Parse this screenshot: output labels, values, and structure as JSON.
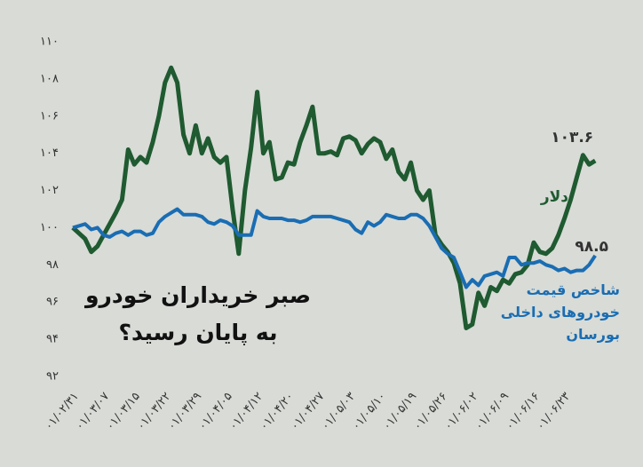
{
  "chart_data": {
    "type": "line",
    "title": "صبر خریداران خودرو به پایان رسید؟",
    "categories": [
      "۰۱/۰۲/۳۱",
      null,
      null,
      null,
      null,
      "۰۱/۰۳/۰۷",
      null,
      null,
      null,
      null,
      "۰۱/۰۳/۱۵",
      null,
      null,
      null,
      null,
      "۰۱/۰۳/۲۲",
      null,
      null,
      null,
      null,
      "۰۱/۰۳/۲۹",
      null,
      null,
      null,
      null,
      "۰۱/۰۴/۰۵",
      null,
      null,
      null,
      null,
      "۰۱/۰۴/۱۲",
      null,
      null,
      null,
      null,
      "۰۱/۰۴/۲۰",
      null,
      null,
      null,
      null,
      "۰۱/۰۴/۲۷",
      null,
      null,
      null,
      null,
      "۰۱/۰۵/۰۳",
      null,
      null,
      null,
      null,
      "۰۱/۰۵/۱۰",
      null,
      null,
      null,
      null,
      "۰۱/۰۵/۱۹",
      null,
      null,
      null,
      null,
      "۰۱/۰۵/۲۶",
      null,
      null,
      null,
      null,
      "۰۱/۰۶/۰۲",
      null,
      null,
      null,
      null,
      "۰۱/۰۶/۰۹",
      null,
      null,
      null,
      null,
      "۰۱/۰۶/۱۶",
      null,
      null,
      null,
      null,
      "۰۱/۰۶/۲۳",
      null,
      null,
      null,
      null,
      null
    ],
    "series": [
      {
        "name": "دلار",
        "color": "#1f5a30",
        "values": [
          100,
          99.7,
          99.4,
          98.7,
          99.0,
          99.6,
          100.2,
          100.8,
          101.5,
          104.2,
          103.4,
          103.8,
          103.5,
          104.6,
          106.0,
          107.8,
          108.6,
          107.8,
          105.0,
          104.0,
          105.5,
          104.0,
          104.8,
          103.8,
          103.5,
          103.8,
          101.0,
          98.6,
          102.0,
          104.3,
          107.3,
          104.0,
          104.6,
          102.6,
          102.7,
          103.5,
          103.4,
          104.6,
          105.5,
          106.5,
          104.0,
          104.0,
          104.1,
          103.9,
          104.8,
          104.9,
          104.7,
          104.0,
          104.5,
          104.8,
          104.6,
          103.7,
          104.2,
          103.0,
          102.6,
          103.5,
          102.0,
          101.5,
          102.0,
          99.6,
          99.1,
          98.7,
          98.1,
          97.0,
          94.6,
          94.8,
          96.5,
          95.8,
          96.8,
          96.6,
          97.2,
          97.0,
          97.5,
          97.6,
          98.0,
          99.2,
          98.7,
          98.6,
          98.9,
          99.6,
          100.5,
          101.5,
          102.7,
          103.9,
          103.4,
          103.6
        ],
        "value_labels": [
          null,
          null,
          null,
          null,
          null,
          null,
          null,
          null,
          null,
          null,
          null,
          null,
          null,
          null,
          null,
          null,
          null,
          null,
          null,
          null,
          null,
          null,
          null,
          null,
          null,
          null,
          null,
          null,
          null,
          null,
          null,
          null,
          null,
          null,
          null,
          null,
          null,
          null,
          null,
          null,
          null,
          null,
          null,
          null,
          null,
          null,
          null,
          null,
          null,
          null,
          null,
          null,
          null,
          null,
          null,
          null,
          null,
          null,
          null,
          null,
          null,
          null,
          null,
          null,
          null,
          null,
          null,
          null,
          null,
          null,
          null,
          null,
          null,
          null,
          null,
          null,
          null,
          null,
          null,
          null,
          null,
          null,
          null,
          null,
          null,
          "۱۰۳.۶"
        ]
      },
      {
        "name": "شاخص قیمت خودروهای داخلی بورسان",
        "color": "#1a6db3",
        "values": [
          100,
          100.1,
          100.2,
          99.9,
          100.0,
          99.6,
          99.5,
          99.7,
          99.8,
          99.6,
          99.8,
          99.8,
          99.6,
          99.7,
          100.3,
          100.6,
          100.8,
          101.0,
          100.7,
          100.7,
          100.7,
          100.6,
          100.3,
          100.2,
          100.4,
          100.3,
          100.1,
          99.6,
          99.6,
          99.6,
          100.9,
          100.6,
          100.5,
          100.5,
          100.5,
          100.4,
          100.4,
          100.3,
          100.4,
          100.6,
          100.6,
          100.6,
          100.6,
          100.5,
          100.4,
          100.3,
          99.9,
          99.7,
          100.3,
          100.1,
          100.3,
          100.7,
          100.6,
          100.5,
          100.5,
          100.7,
          100.7,
          100.5,
          100.1,
          99.5,
          98.9,
          98.6,
          98.4,
          97.6,
          96.8,
          97.2,
          96.9,
          97.4,
          97.5,
          97.6,
          97.4,
          98.4,
          98.4,
          98.0,
          98.1,
          98.1,
          98.2,
          98.0,
          97.9,
          97.7,
          97.8,
          97.6,
          97.7,
          97.7,
          98.0,
          98.5
        ],
        "value_labels": [
          null,
          null,
          null,
          null,
          null,
          null,
          null,
          null,
          null,
          null,
          null,
          null,
          null,
          null,
          null,
          null,
          null,
          null,
          null,
          null,
          null,
          null,
          null,
          null,
          null,
          null,
          null,
          null,
          null,
          null,
          null,
          null,
          null,
          null,
          null,
          null,
          null,
          null,
          null,
          null,
          null,
          null,
          null,
          null,
          null,
          null,
          null,
          null,
          null,
          null,
          null,
          null,
          null,
          null,
          null,
          null,
          null,
          null,
          null,
          null,
          null,
          null,
          null,
          null,
          null,
          null,
          null,
          null,
          null,
          null,
          null,
          null,
          null,
          null,
          null,
          null,
          null,
          null,
          null,
          null,
          null,
          null,
          null,
          null,
          null,
          "۹۸.۵"
        ]
      }
    ],
    "ylim": [
      92,
      110
    ],
    "yticks": [
      {
        "value": 92,
        "label": "۹۲"
      },
      {
        "value": 94,
        "label": "۹۴"
      },
      {
        "value": 96,
        "label": "۹۶"
      },
      {
        "value": 98,
        "label": "۹۸"
      },
      {
        "value": 100,
        "label": "۱۰۰"
      },
      {
        "value": 102,
        "label": "۱۰۲"
      },
      {
        "value": 104,
        "label": "۱۰۴"
      },
      {
        "value": 106,
        "label": "۱۰۶"
      },
      {
        "value": 108,
        "label": "۱۰۸"
      },
      {
        "value": 110,
        "label": "۱۱۰"
      }
    ],
    "grid": false
  }
}
